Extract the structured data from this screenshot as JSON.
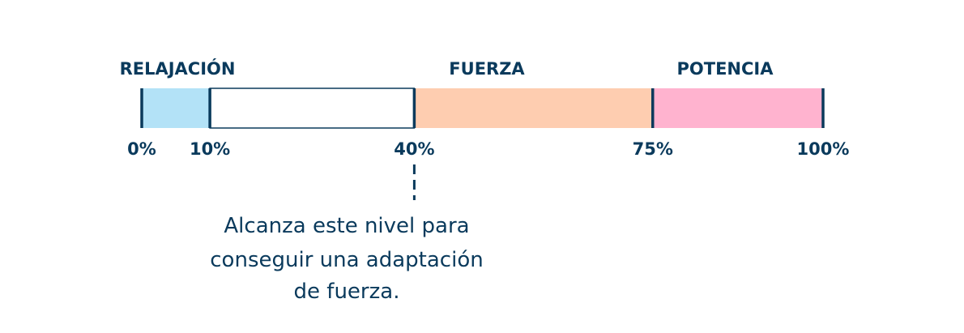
{
  "colors": {
    "dark": "#0a3a5c",
    "relajacion": "#b3e2f7",
    "empty": "#ffffff",
    "fuerza": "#fecdb0",
    "potencia": "#ffb3cf"
  },
  "zones": [
    {
      "label": "RELAJACIÓN",
      "from": 0,
      "to": 10,
      "color": "#b3e2f7"
    },
    {
      "label": "",
      "from": 10,
      "to": 40,
      "color": "#ffffff"
    },
    {
      "label": "FUERZA",
      "from": 40,
      "to": 75,
      "color": "#fecdb0"
    },
    {
      "label": "POTENCIA",
      "from": 75,
      "to": 100,
      "color": "#ffb3cf"
    }
  ],
  "ticks": [
    {
      "value": 0,
      "label": "0%"
    },
    {
      "value": 10,
      "label": "10%"
    },
    {
      "value": 40,
      "label": "40%"
    },
    {
      "value": 75,
      "label": "75%"
    },
    {
      "value": 100,
      "label": "100%"
    }
  ],
  "marker_value": 40,
  "note": {
    "line1": "Alcanza este nivel para",
    "line2": "conseguir una adaptación",
    "line3": "de fuerza."
  }
}
